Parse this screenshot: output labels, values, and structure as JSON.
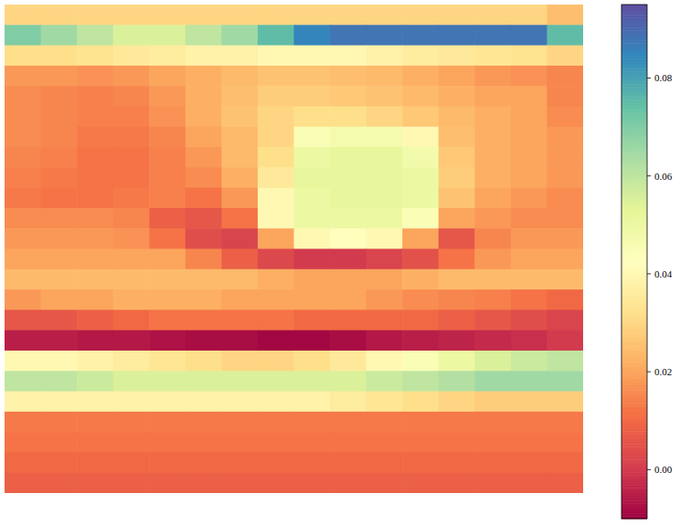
{
  "chart_data": {
    "type": "heatmap",
    "tick_labels": false,
    "cells": [
      [
        0.03,
        0.03,
        0.03,
        0.03,
        0.03,
        0.03,
        0.03,
        0.03,
        0.03,
        0.03,
        0.03,
        0.03,
        0.03,
        0.03,
        0.03,
        0.025
      ],
      [
        0.07,
        0.065,
        0.06,
        0.055,
        0.055,
        0.06,
        0.065,
        0.075,
        0.085,
        0.088,
        0.088,
        0.088,
        0.088,
        0.088,
        0.088,
        0.075
      ],
      [
        0.032,
        0.032,
        0.033,
        0.035,
        0.036,
        0.038,
        0.038,
        0.04,
        0.04,
        0.04,
        0.038,
        0.036,
        0.035,
        0.034,
        0.033,
        0.03
      ],
      [
        0.018,
        0.018,
        0.017,
        0.018,
        0.02,
        0.022,
        0.024,
        0.026,
        0.026,
        0.025,
        0.024,
        0.022,
        0.02,
        0.018,
        0.017,
        0.015
      ],
      [
        0.016,
        0.015,
        0.014,
        0.015,
        0.018,
        0.022,
        0.025,
        0.028,
        0.028,
        0.027,
        0.026,
        0.024,
        0.022,
        0.02,
        0.02,
        0.015
      ],
      [
        0.016,
        0.015,
        0.014,
        0.014,
        0.017,
        0.022,
        0.026,
        0.03,
        0.032,
        0.032,
        0.03,
        0.027,
        0.024,
        0.022,
        0.02,
        0.016
      ],
      [
        0.016,
        0.015,
        0.013,
        0.013,
        0.015,
        0.02,
        0.024,
        0.03,
        0.045,
        0.047,
        0.047,
        0.04,
        0.025,
        0.022,
        0.02,
        0.018
      ],
      [
        0.015,
        0.014,
        0.012,
        0.012,
        0.014,
        0.018,
        0.024,
        0.032,
        0.05,
        0.052,
        0.052,
        0.048,
        0.027,
        0.022,
        0.02,
        0.018
      ],
      [
        0.014,
        0.013,
        0.012,
        0.012,
        0.014,
        0.016,
        0.022,
        0.035,
        0.052,
        0.052,
        0.052,
        0.05,
        0.028,
        0.022,
        0.02,
        0.018
      ],
      [
        0.013,
        0.012,
        0.012,
        0.013,
        0.014,
        0.012,
        0.018,
        0.04,
        0.05,
        0.052,
        0.052,
        0.05,
        0.026,
        0.02,
        0.018,
        0.016
      ],
      [
        0.016,
        0.016,
        0.016,
        0.015,
        0.008,
        0.006,
        0.012,
        0.04,
        0.05,
        0.05,
        0.05,
        0.045,
        0.02,
        0.018,
        0.016,
        0.016
      ],
      [
        0.018,
        0.018,
        0.018,
        0.017,
        0.012,
        0.004,
        0.002,
        0.02,
        0.04,
        0.042,
        0.04,
        0.02,
        0.006,
        0.015,
        0.018,
        0.018
      ],
      [
        0.02,
        0.02,
        0.02,
        0.02,
        0.02,
        0.015,
        0.008,
        0.003,
        0.0,
        0.0,
        0.002,
        0.005,
        0.012,
        0.018,
        0.02,
        0.02
      ],
      [
        0.024,
        0.024,
        0.024,
        0.024,
        0.024,
        0.024,
        0.024,
        0.022,
        0.02,
        0.02,
        0.02,
        0.022,
        0.024,
        0.024,
        0.024,
        0.024
      ],
      [
        0.018,
        0.02,
        0.02,
        0.022,
        0.022,
        0.022,
        0.02,
        0.02,
        0.02,
        0.02,
        0.018,
        0.016,
        0.015,
        0.014,
        0.012,
        0.01
      ],
      [
        0.006,
        0.006,
        0.008,
        0.01,
        0.012,
        0.012,
        0.012,
        0.012,
        0.01,
        0.01,
        0.01,
        0.01,
        0.008,
        0.006,
        0.004,
        0.002
      ],
      [
        -0.005,
        -0.005,
        -0.006,
        -0.006,
        -0.007,
        -0.008,
        -0.008,
        -0.009,
        -0.009,
        -0.008,
        -0.006,
        -0.005,
        -0.004,
        -0.003,
        -0.002,
        0.0
      ],
      [
        0.04,
        0.04,
        0.038,
        0.036,
        0.034,
        0.032,
        0.03,
        0.03,
        0.032,
        0.035,
        0.04,
        0.045,
        0.05,
        0.055,
        0.058,
        0.06
      ],
      [
        0.06,
        0.06,
        0.058,
        0.055,
        0.055,
        0.055,
        0.055,
        0.055,
        0.055,
        0.055,
        0.058,
        0.06,
        0.062,
        0.065,
        0.065,
        0.065
      ],
      [
        0.038,
        0.038,
        0.038,
        0.038,
        0.038,
        0.038,
        0.038,
        0.038,
        0.038,
        0.036,
        0.034,
        0.032,
        0.03,
        0.028,
        0.028,
        0.028
      ],
      [
        0.013,
        0.013,
        0.013,
        0.013,
        0.013,
        0.013,
        0.013,
        0.013,
        0.013,
        0.013,
        0.013,
        0.013,
        0.013,
        0.013,
        0.013,
        0.013
      ],
      [
        0.012,
        0.012,
        0.012,
        0.012,
        0.012,
        0.012,
        0.012,
        0.012,
        0.012,
        0.012,
        0.012,
        0.012,
        0.012,
        0.012,
        0.012,
        0.012
      ],
      [
        0.01,
        0.01,
        0.01,
        0.01,
        0.01,
        0.01,
        0.01,
        0.01,
        0.01,
        0.01,
        0.01,
        0.01,
        0.01,
        0.01,
        0.01,
        0.01
      ],
      [
        0.008,
        0.008,
        0.008,
        0.008,
        0.008,
        0.008,
        0.008,
        0.008,
        0.008,
        0.008,
        0.008,
        0.008,
        0.008,
        0.008,
        0.008,
        0.008
      ]
    ],
    "colorbar": {
      "range": [
        -0.01,
        0.095
      ],
      "ticks": [
        {
          "value": 0,
          "label": "0.00"
        },
        {
          "value": 0.02,
          "label": "0.02"
        },
        {
          "value": 0.04,
          "label": "0.04"
        },
        {
          "value": 0.06,
          "label": "0.06"
        },
        {
          "value": 0.08,
          "label": "0.08"
        }
      ]
    }
  }
}
